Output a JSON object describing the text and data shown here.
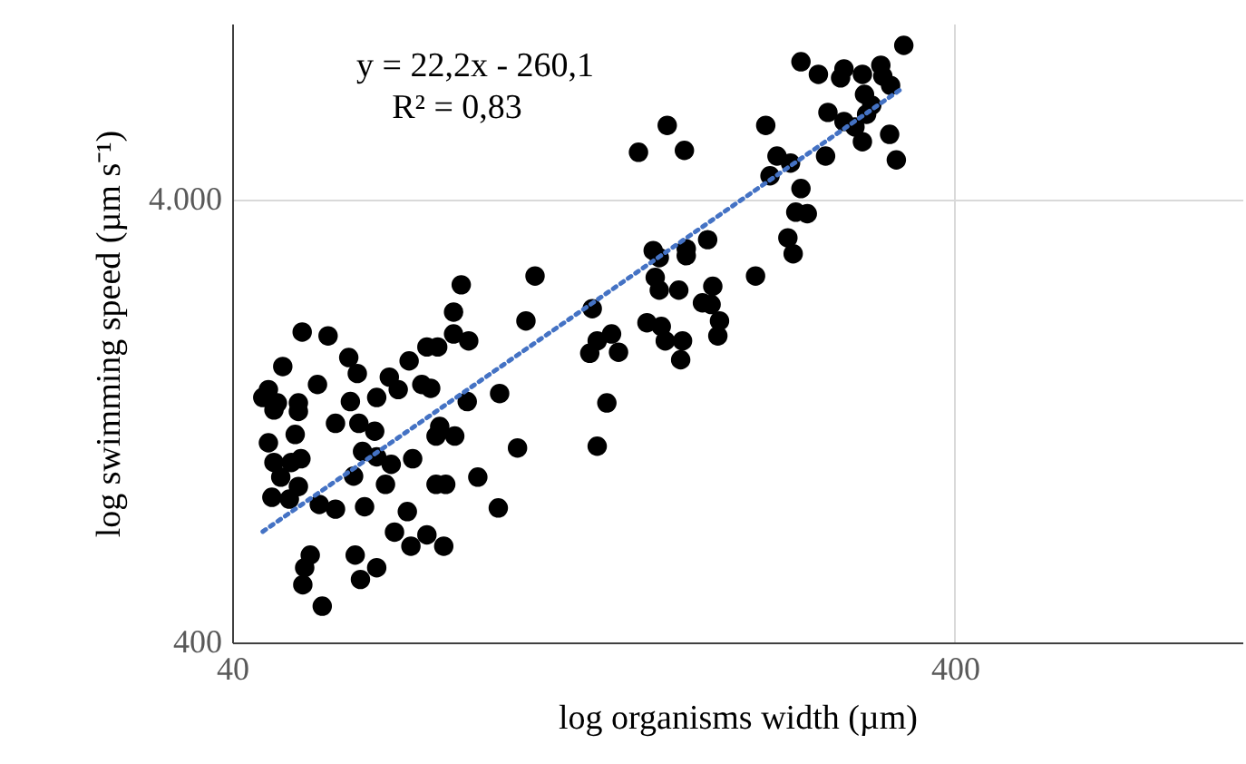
{
  "chart_data": {
    "type": "scatter",
    "xlabel": "log organisms width (µm)",
    "ylabel": "log swimming speed (µm s⁻¹)",
    "annotations": [
      "y = 22,2x - 260,1",
      "R² = 0,83"
    ],
    "log": "xy",
    "grid": true,
    "marker": "circle",
    "xlim": [
      40,
      1000
    ],
    "xticks": [
      40,
      400
    ],
    "ylim": [
      400,
      10000
    ],
    "yticks": [
      400,
      {
        "value": 4000,
        "label": "4.000"
      }
    ],
    "series": [
      {
        "color": "#000000",
        "x": [
          105,
          83,
          81,
          102,
          50,
          54.3,
          81,
          85,
          74.4,
          77,
          58,
          70.3,
          47,
          59.6,
          66,
          52.5,
          73.2,
          67.9,
          75.3,
          93.8,
          44.9,
          44.1,
          46.2,
          63.4,
          58.3,
          84.6,
          49.4,
          49.4,
          45.7,
          55.6,
          59.9,
          77.5,
          63,
          48.9,
          76.6,
          81.3,
          44.9,
          99.3,
          60.6,
          63.4,
          45.7,
          48.3,
          49.8,
          66.4,
          71.1,
          58.9,
          46.7,
          87.5,
          65.2,
          76.6,
          79,
          49.4,
          45.4,
          48,
          52.8,
          55.6,
          61,
          93.4,
          69.9,
          67.1,
          74.4,
          70.7,
          78.5,
          51.3,
          59.2,
          50.4,
          63.4,
          50.1,
          60.2,
          53.3,
          340,
          245,
          259,
          281,
          278,
          298,
          316,
          318,
          326,
          300,
          307,
          267,
          281,
          302,
          291,
          298,
          325,
          332,
          265,
          219,
          160,
          146,
          169,
          227,
          237,
          222,
          245,
          241,
          250,
          235,
          239,
          153,
          156,
          170,
          170,
          182,
          154,
          156,
          166,
          185,
          212,
          179,
          184,
          126,
          150,
          157,
          189,
          134,
          128,
          159,
          168,
          188,
          125,
          137,
          167,
          132,
          128
        ],
        "values": [
          2690,
          2570,
          2230,
          2130,
          2010,
          1970,
          1990,
          1920,
          1860,
          1860,
          1760,
          1730,
          1680,
          1620,
          1590,
          1530,
          1530,
          1490,
          1500,
          1460,
          1490,
          1430,
          1390,
          1430,
          1400,
          1400,
          1390,
          1330,
          1340,
          1250,
          1250,
          1230,
          1200,
          1180,
          1170,
          1170,
          1130,
          1100,
          1080,
          1050,
          1020,
          1020,
          1040,
          1010,
          1040,
          950,
          945,
          945,
          910,
          910,
          910,
          900,
          851,
          843,
          820,
          800,
          810,
          805,
          790,
          710,
          700,
          660,
          660,
          630,
          630,
          590,
          590,
          540,
          555,
          483,
          8930,
          8200,
          7680,
          7900,
          7540,
          7680,
          8050,
          7610,
          7250,
          6920,
          6540,
          6300,
          6010,
          6240,
          5840,
          5410,
          5620,
          4920,
          5020,
          5890,
          5890,
          5120,
          5170,
          5020,
          4840,
          4530,
          4240,
          3750,
          3720,
          3280,
          3020,
          3070,
          2960,
          3100,
          2990,
          3250,
          2670,
          2500,
          2500,
          2550,
          2690,
          2340,
          2320,
          2270,
          2110,
          2070,
          2130,
          1990,
          1920,
          1920,
          1920,
          1970,
          1800,
          1810,
          1740,
          1390,
          1110
        ]
      },
      {
        "type": "line",
        "color": "#4472c4",
        "line_style": "dotted",
        "marker": "none",
        "x": [
          44.1,
          340
        ],
        "values": [
          712,
          7180
        ]
      }
    ]
  }
}
